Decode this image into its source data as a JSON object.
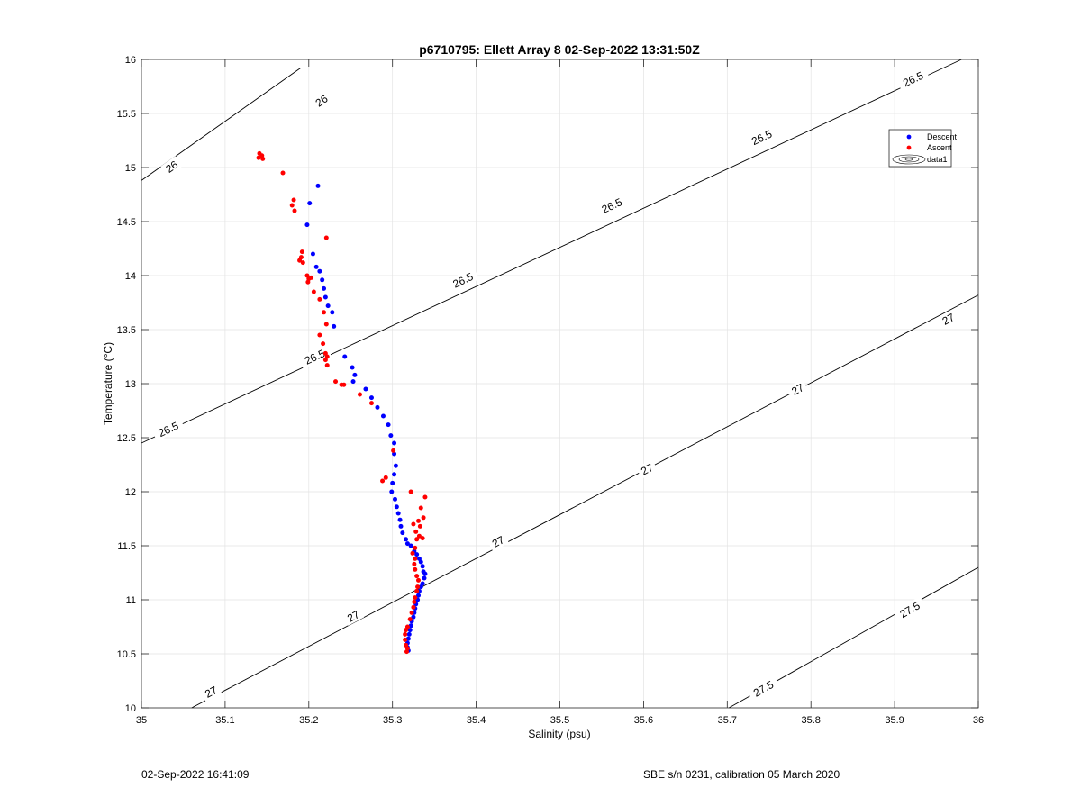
{
  "chart_data": {
    "type": "scatter",
    "title": "p6710795: Ellett Array 8 02-Sep-2022 13:31:50Z",
    "xlabel": "Salinity (psu)",
    "ylabel": "Temperature (°C)",
    "xlim": [
      35,
      36
    ],
    "ylim": [
      10,
      16
    ],
    "xticks": [
      "35",
      "35.1",
      "35.2",
      "35.3",
      "35.4",
      "35.5",
      "35.6",
      "35.7",
      "35.8",
      "35.9",
      "36"
    ],
    "yticks": [
      "10",
      "10.5",
      "11",
      "11.5",
      "12",
      "12.5",
      "13",
      "13.5",
      "14",
      "14.5",
      "15",
      "15.5",
      "16"
    ],
    "grid": true,
    "legend_position": "top-right",
    "legend": [
      {
        "label": "Descent",
        "marker": "dot",
        "color": "#0000ff"
      },
      {
        "label": "Ascent",
        "marker": "dot",
        "color": "#ff0000"
      },
      {
        "label": "data1",
        "marker": "contour",
        "color": "#000000"
      }
    ],
    "series": [
      {
        "name": "Descent",
        "color": "#0000ff",
        "points": [
          [
            35.211,
            14.83
          ],
          [
            35.201,
            14.67
          ],
          [
            35.198,
            14.47
          ],
          [
            35.205,
            14.2
          ],
          [
            35.209,
            14.08
          ],
          [
            35.213,
            14.04
          ],
          [
            35.216,
            13.96
          ],
          [
            35.218,
            13.88
          ],
          [
            35.22,
            13.8
          ],
          [
            35.223,
            13.72
          ],
          [
            35.228,
            13.66
          ],
          [
            35.23,
            13.53
          ],
          [
            35.243,
            13.25
          ],
          [
            35.252,
            13.15
          ],
          [
            35.255,
            13.08
          ],
          [
            35.253,
            13.02
          ],
          [
            35.268,
            12.95
          ],
          [
            35.275,
            12.87
          ],
          [
            35.282,
            12.78
          ],
          [
            35.289,
            12.7
          ],
          [
            35.295,
            12.62
          ],
          [
            35.298,
            12.52
          ],
          [
            35.302,
            12.45
          ],
          [
            35.302,
            12.35
          ],
          [
            35.304,
            12.24
          ],
          [
            35.302,
            12.16
          ],
          [
            35.3,
            12.08
          ],
          [
            35.299,
            12.0
          ],
          [
            35.303,
            11.93
          ],
          [
            35.305,
            11.86
          ],
          [
            35.307,
            11.8
          ],
          [
            35.309,
            11.74
          ],
          [
            35.31,
            11.68
          ],
          [
            35.312,
            11.62
          ],
          [
            35.316,
            11.56
          ],
          [
            35.318,
            11.52
          ],
          [
            35.322,
            11.5
          ],
          [
            35.326,
            11.45
          ],
          [
            35.329,
            11.42
          ],
          [
            35.332,
            11.38
          ],
          [
            35.334,
            11.35
          ],
          [
            35.336,
            11.31
          ],
          [
            35.337,
            11.26
          ],
          [
            35.339,
            11.24
          ],
          [
            35.338,
            11.2
          ],
          [
            35.336,
            11.15
          ],
          [
            35.334,
            11.12
          ],
          [
            35.332,
            11.08
          ],
          [
            35.331,
            11.04
          ],
          [
            35.33,
            11.0
          ],
          [
            35.328,
            10.96
          ],
          [
            35.327,
            10.92
          ],
          [
            35.326,
            10.88
          ],
          [
            35.325,
            10.84
          ],
          [
            35.323,
            10.8
          ],
          [
            35.322,
            10.76
          ],
          [
            35.321,
            10.72
          ],
          [
            35.32,
            10.68
          ],
          [
            35.319,
            10.64
          ],
          [
            35.318,
            10.6
          ],
          [
            35.318,
            10.56
          ],
          [
            35.319,
            10.53
          ]
        ]
      },
      {
        "name": "Ascent",
        "color": "#ff0000",
        "points": [
          [
            35.141,
            15.13
          ],
          [
            35.144,
            15.11
          ],
          [
            35.14,
            15.09
          ],
          [
            35.145,
            15.08
          ],
          [
            35.169,
            14.95
          ],
          [
            35.182,
            14.7
          ],
          [
            35.18,
            14.65
          ],
          [
            35.183,
            14.6
          ],
          [
            35.221,
            14.35
          ],
          [
            35.192,
            14.22
          ],
          [
            35.191,
            14.17
          ],
          [
            35.189,
            14.14
          ],
          [
            35.193,
            14.12
          ],
          [
            35.198,
            14.0
          ],
          [
            35.2,
            13.97
          ],
          [
            35.203,
            13.98
          ],
          [
            35.199,
            13.94
          ],
          [
            35.206,
            13.85
          ],
          [
            35.213,
            13.78
          ],
          [
            35.218,
            13.66
          ],
          [
            35.221,
            13.55
          ],
          [
            35.213,
            13.45
          ],
          [
            35.217,
            13.37
          ],
          [
            35.22,
            13.28
          ],
          [
            35.222,
            13.25
          ],
          [
            35.22,
            13.22
          ],
          [
            35.222,
            13.17
          ],
          [
            35.232,
            13.02
          ],
          [
            35.239,
            12.99
          ],
          [
            35.242,
            12.99
          ],
          [
            35.261,
            12.9
          ],
          [
            35.275,
            12.82
          ],
          [
            35.301,
            12.38
          ],
          [
            35.292,
            12.13
          ],
          [
            35.288,
            12.1
          ],
          [
            35.322,
            12.0
          ],
          [
            35.339,
            11.95
          ],
          [
            35.334,
            11.85
          ],
          [
            35.337,
            11.76
          ],
          [
            35.331,
            11.73
          ],
          [
            35.325,
            11.7
          ],
          [
            35.333,
            11.68
          ],
          [
            35.328,
            11.63
          ],
          [
            35.332,
            11.59
          ],
          [
            35.336,
            11.57
          ],
          [
            35.329,
            11.56
          ],
          [
            35.327,
            11.48
          ],
          [
            35.324,
            11.43
          ],
          [
            35.327,
            11.38
          ],
          [
            35.326,
            11.33
          ],
          [
            35.327,
            11.28
          ],
          [
            35.329,
            11.22
          ],
          [
            35.331,
            11.18
          ],
          [
            35.33,
            11.12
          ],
          [
            35.329,
            11.08
          ],
          [
            35.327,
            11.02
          ],
          [
            35.326,
            10.98
          ],
          [
            35.325,
            10.93
          ],
          [
            35.323,
            10.88
          ],
          [
            35.321,
            10.82
          ],
          [
            35.318,
            10.75
          ],
          [
            35.316,
            10.72
          ],
          [
            35.315,
            10.68
          ],
          [
            35.315,
            10.63
          ],
          [
            35.316,
            10.58
          ],
          [
            35.318,
            10.55
          ],
          [
            35.317,
            10.52
          ]
        ]
      }
    ],
    "contours": [
      {
        "label": "26",
        "line": [
          [
            35.0,
            14.88
          ],
          [
            35.19,
            15.92
          ]
        ],
        "label_at": [
          [
            35.036,
            15.01
          ],
          [
            35.215,
            15.62
          ]
        ]
      },
      {
        "label": "26.5",
        "line": [
          [
            35.0,
            12.45
          ],
          [
            35.98,
            16.0
          ]
        ],
        "label_at": [
          [
            35.032,
            12.58
          ],
          [
            35.207,
            13.25
          ],
          [
            35.384,
            13.96
          ],
          [
            35.562,
            14.65
          ],
          [
            35.741,
            15.28
          ],
          [
            35.922,
            15.82
          ]
        ]
      },
      {
        "label": "27",
        "line": [
          [
            35.06,
            10.0
          ],
          [
            36.0,
            13.82
          ]
        ],
        "label_at": [
          [
            35.083,
            10.15
          ],
          [
            35.253,
            10.85
          ],
          [
            35.426,
            11.54
          ],
          [
            35.604,
            12.21
          ],
          [
            35.784,
            12.95
          ],
          [
            35.964,
            13.6
          ]
        ]
      },
      {
        "label": "27.5",
        "line": [
          [
            35.702,
            10.0
          ],
          [
            36.0,
            11.3
          ]
        ],
        "label_at": [
          [
            35.743,
            10.18
          ],
          [
            35.918,
            10.91
          ]
        ]
      }
    ]
  },
  "footer": {
    "date": "02-Sep-2022 16:41:09",
    "sensor": "SBE s/n 0231, calibration 05 March 2020"
  }
}
